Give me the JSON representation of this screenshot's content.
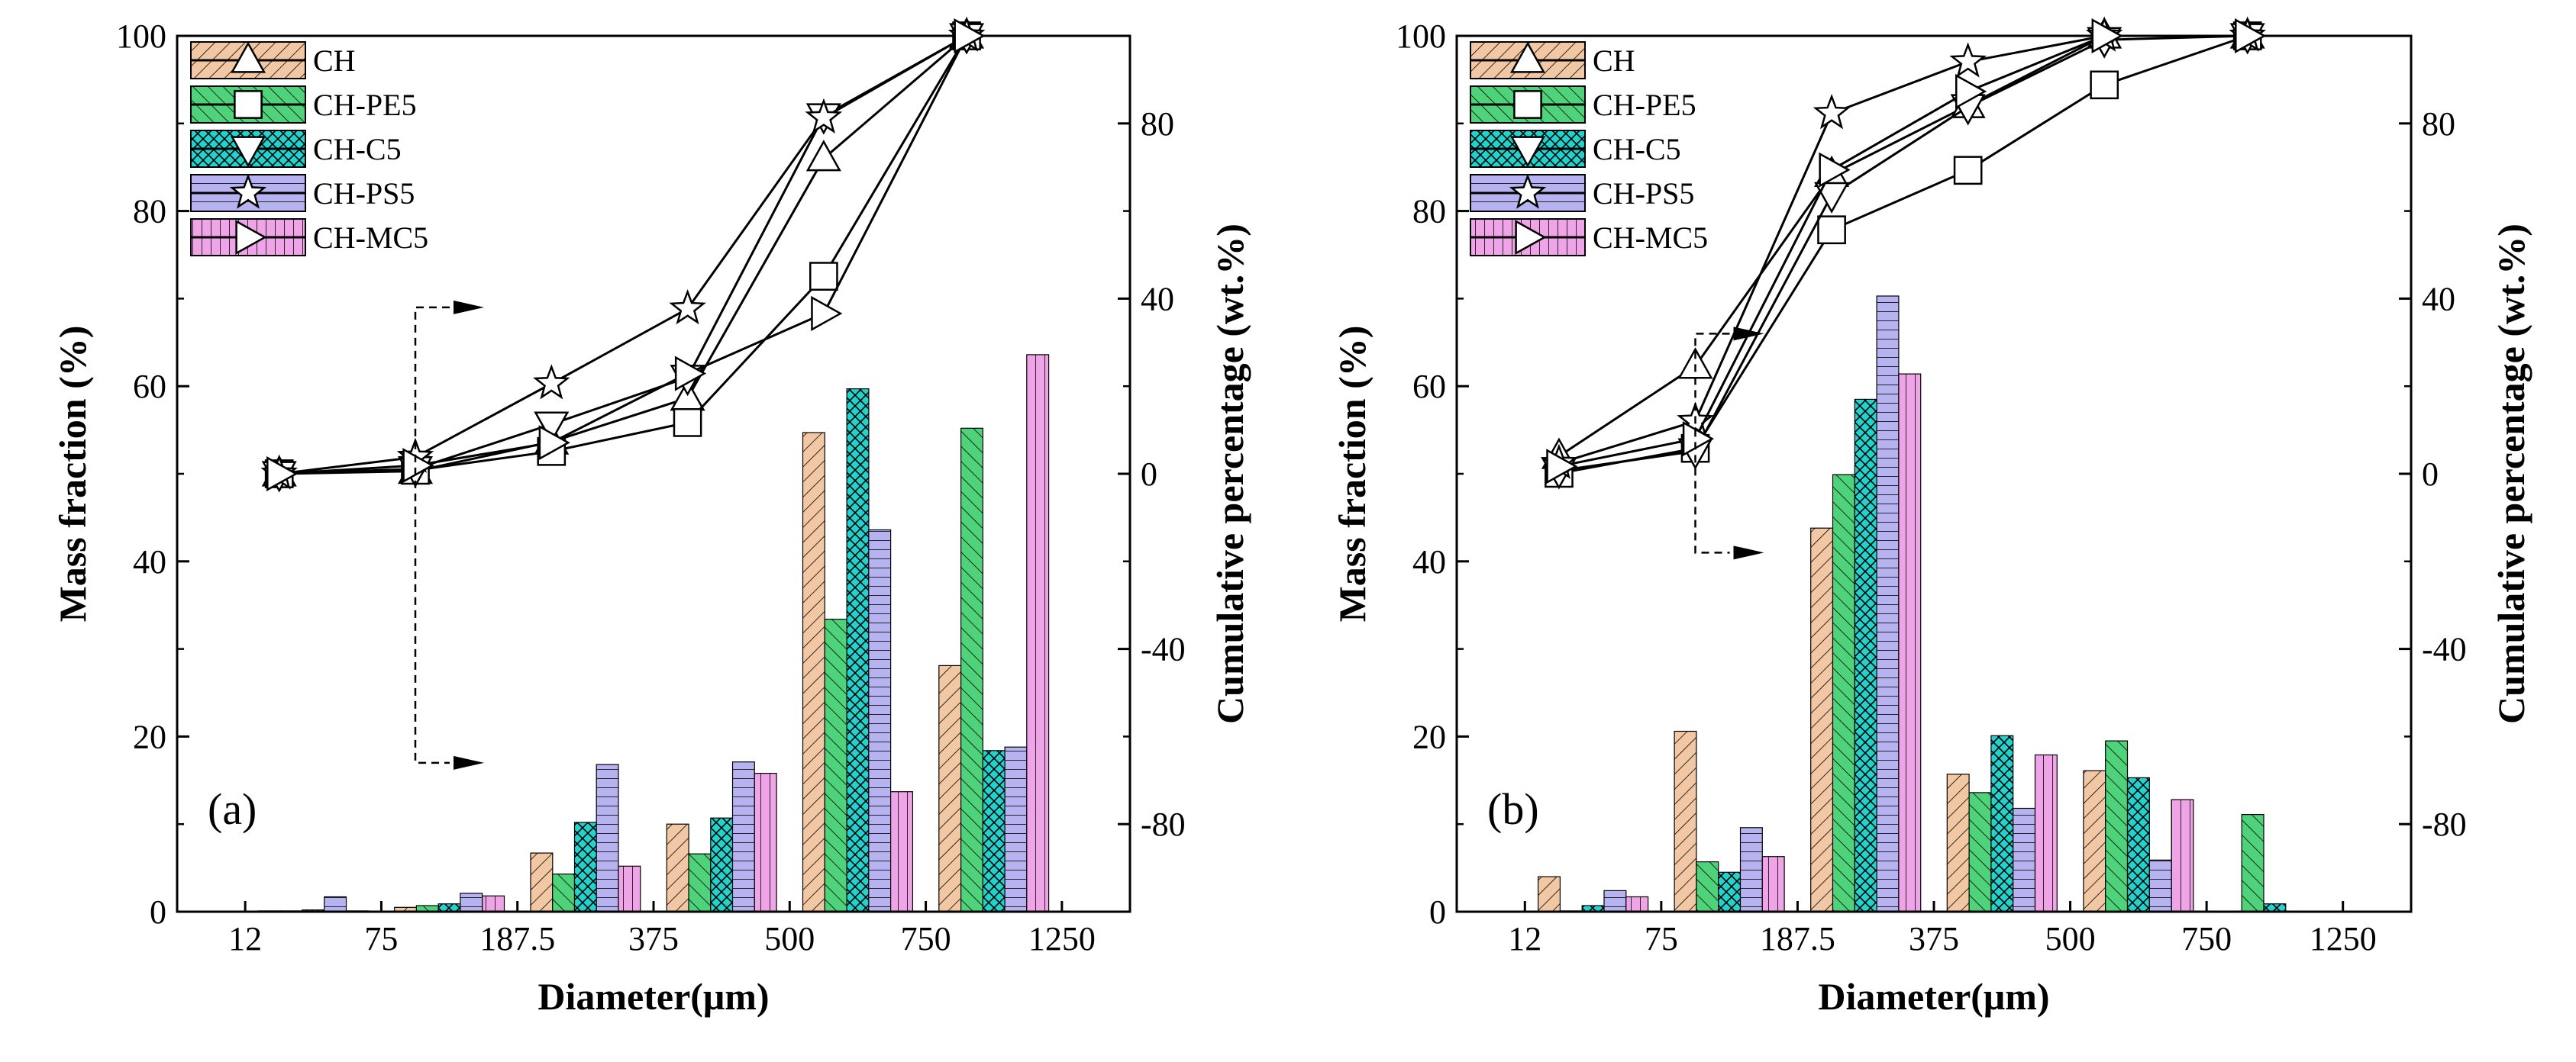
{
  "colors": {
    "CH": "#f2c8a4",
    "CH-PE5": "#4fd37a",
    "CH-C5": "#23d2cc",
    "CH-PS5": "#b7b2f0",
    "CH-MC5": "#f0a4e8"
  },
  "chart_data": [
    {
      "type": "bar+line",
      "panel_label": "(a)",
      "xlabel": "Diameter(μm)",
      "ylabel": "Mass fraction (%)",
      "y2label": "Cumulative percentage (wt.%)",
      "ylim": [
        0,
        100
      ],
      "y2lim": [
        -100,
        100
      ],
      "yticks": [
        "0",
        "20",
        "40",
        "60",
        "80",
        "100"
      ],
      "y2ticks": [
        "-80",
        "-40",
        "0",
        "40",
        "80"
      ],
      "categories": [
        "12",
        "75",
        "187.5",
        "375",
        "500",
        "750",
        "1250"
      ],
      "legend": [
        "CH",
        "CH-PE5",
        "CH-C5",
        "CH-PS5",
        "CH-MC5"
      ],
      "bars": [
        {
          "name": "CH",
          "values": [
            0.1,
            0.5,
            6.7,
            10.0,
            54.7,
            28.1
          ]
        },
        {
          "name": "CH-PE5",
          "values": [
            0.1,
            0.7,
            4.3,
            6.6,
            33.4,
            55.2
          ]
        },
        {
          "name": "CH-C5",
          "values": [
            0.2,
            0.9,
            10.2,
            10.7,
            59.7,
            18.4
          ]
        },
        {
          "name": "CH-PS5",
          "values": [
            1.7,
            2.1,
            16.8,
            17.1,
            43.6,
            18.8
          ]
        },
        {
          "name": "CH-MC5",
          "values": [
            0.1,
            1.8,
            5.2,
            15.8,
            13.7,
            63.6
          ]
        }
      ],
      "cumulative_x_positions": [
        0.5,
        1.5,
        2.5,
        3.5,
        4.5,
        5.5
      ],
      "cumulative": [
        {
          "name": "CH",
          "values": [
            0,
            0.6,
            7.3,
            17.3,
            72.0,
            100
          ]
        },
        {
          "name": "CH-PE5",
          "values": [
            0,
            0.8,
            5.1,
            11.7,
            45.1,
            100
          ]
        },
        {
          "name": "CH-C5",
          "values": [
            0,
            1.1,
            11.3,
            22.0,
            81.7,
            100
          ]
        },
        {
          "name": "CH-PS5",
          "values": [
            0,
            3.8,
            20.6,
            37.7,
            81.3,
            100
          ]
        },
        {
          "name": "CH-MC5",
          "values": [
            0,
            1.9,
            7.1,
            22.9,
            36.6,
            100
          ]
        }
      ]
    },
    {
      "type": "bar+line",
      "panel_label": "(b)",
      "xlabel": "Diameter(μm)",
      "ylabel": "Mass fraction (%)",
      "y2label": "Cumulative percentage (wt.%)",
      "ylim": [
        0,
        100
      ],
      "y2lim": [
        -100,
        100
      ],
      "yticks": [
        "0",
        "20",
        "40",
        "60",
        "80",
        "100"
      ],
      "y2ticks": [
        "-80",
        "-40",
        "0",
        "40",
        "80"
      ],
      "categories": [
        "12",
        "75",
        "187.5",
        "375",
        "500",
        "750",
        "1250"
      ],
      "legend": [
        "CH",
        "CH-PE5",
        "CH-C5",
        "CH-PS5",
        "CH-MC5"
      ],
      "bars": [
        {
          "name": "CH",
          "values": [
            4.0,
            20.6,
            43.8,
            15.7,
            16.1,
            0
          ]
        },
        {
          "name": "CH-PE5",
          "values": [
            0.1,
            5.7,
            49.9,
            13.6,
            19.5,
            11.1
          ]
        },
        {
          "name": "CH-C5",
          "values": [
            0.7,
            4.5,
            58.5,
            20.1,
            15.3,
            0.9
          ]
        },
        {
          "name": "CH-PS5",
          "values": [
            2.4,
            9.6,
            70.3,
            11.8,
            5.9,
            0
          ]
        },
        {
          "name": "CH-MC5",
          "values": [
            1.7,
            6.3,
            61.4,
            17.9,
            12.8,
            0
          ]
        }
      ],
      "cumulative_x_positions": [
        0.5,
        1.5,
        2.5,
        3.5,
        4.5,
        5.5
      ],
      "cumulative": [
        {
          "name": "CH",
          "values": [
            4.0,
            24.6,
            68.4,
            84.1,
            100,
            100
          ]
        },
        {
          "name": "CH-PE5",
          "values": [
            0.1,
            5.8,
            55.7,
            69.3,
            88.8,
            100
          ]
        },
        {
          "name": "CH-C5",
          "values": [
            0.7,
            5.2,
            63.7,
            83.8,
            99.1,
            100
          ]
        },
        {
          "name": "CH-PS5",
          "values": [
            2.4,
            12.0,
            82.3,
            94.1,
            100,
            100
          ]
        },
        {
          "name": "CH-MC5",
          "values": [
            1.7,
            8.0,
            69.4,
            87.3,
            100,
            100
          ]
        }
      ]
    }
  ]
}
